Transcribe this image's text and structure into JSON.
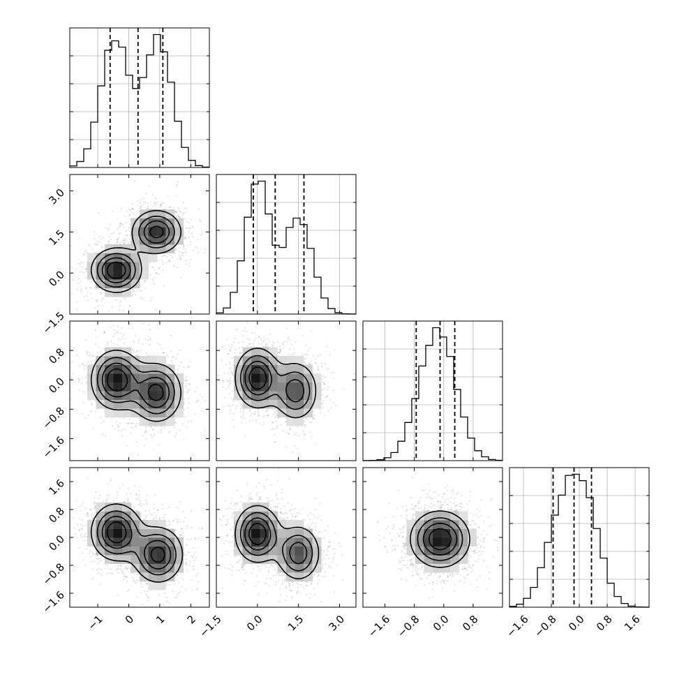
{
  "chart_data": {
    "type": "corner",
    "title": "",
    "parameters": [
      {
        "range": [
          -1.9,
          2.6
        ],
        "ticks": [
          -1,
          0,
          1,
          2
        ],
        "tick_labels": [
          "−1",
          "0",
          "1",
          "2"
        ],
        "quantiles": [
          -0.6,
          0.3,
          1.1
        ],
        "modes": [
          {
            "mean": -0.45,
            "sd": 0.45,
            "w": 0.5
          },
          {
            "mean": 0.95,
            "sd": 0.45,
            "w": 0.5
          }
        ]
      },
      {
        "range": [
          -1.5,
          3.6
        ],
        "ticks": [
          -1.5,
          0.0,
          1.5,
          3.0
        ],
        "tick_labels": [
          "−1.5",
          "0.0",
          "1.5",
          "3.0"
        ],
        "quantiles": [
          -0.15,
          0.65,
          1.7
        ],
        "modes": [
          {
            "mean": 0.0,
            "sd": 0.45,
            "w": 0.55
          },
          {
            "mean": 1.5,
            "sd": 0.5,
            "w": 0.45
          }
        ]
      },
      {
        "range": [
          -2.2,
          1.6
        ],
        "ticks": [
          -1.6,
          -0.8,
          0.0,
          0.8
        ],
        "tick_labels": [
          "−1.6",
          "−0.8",
          "0.0",
          "0.8"
        ],
        "quantiles": [
          -0.75,
          -0.1,
          0.3
        ],
        "modes": [
          {
            "mean": 0.0,
            "sd": 0.45,
            "w": 0.55
          },
          {
            "mean": -0.4,
            "sd": 0.45,
            "w": 0.45
          }
        ]
      },
      {
        "range": [
          -2.0,
          2.0
        ],
        "ticks": [
          -1.6,
          -0.8,
          0.0,
          0.8,
          1.6
        ],
        "tick_labels": [
          "−1.6",
          "−0.8",
          "0.0",
          "0.8",
          "1.6"
        ],
        "quantiles": [
          -0.75,
          -0.15,
          0.35
        ],
        "modes": [
          {
            "mean": 0.15,
            "sd": 0.45,
            "w": 0.55
          },
          {
            "mean": -0.55,
            "sd": 0.45,
            "w": 0.45
          }
        ]
      }
    ],
    "panels_2d": [
      {
        "row": 1,
        "col": 0,
        "blobs": [
          {
            "x": -0.4,
            "y": 0.1,
            "w": 1
          },
          {
            "x": 0.9,
            "y": 1.5,
            "w": 0.9
          }
        ]
      },
      {
        "row": 2,
        "col": 0,
        "blobs": [
          {
            "x": -0.4,
            "y": 0.0,
            "w": 1
          },
          {
            "x": 0.9,
            "y": -0.35,
            "w": 0.9
          }
        ]
      },
      {
        "row": 2,
        "col": 1,
        "blobs": [
          {
            "x": 0.0,
            "y": 0.05,
            "w": 1
          },
          {
            "x": 1.4,
            "y": -0.3,
            "w": 0.75
          }
        ]
      },
      {
        "row": 3,
        "col": 0,
        "blobs": [
          {
            "x": -0.4,
            "y": 0.15,
            "w": 1
          },
          {
            "x": 0.95,
            "y": -0.5,
            "w": 0.9
          }
        ]
      },
      {
        "row": 3,
        "col": 1,
        "blobs": [
          {
            "x": 0.0,
            "y": 0.1,
            "w": 1
          },
          {
            "x": 1.5,
            "y": -0.45,
            "w": 0.75
          }
        ]
      },
      {
        "row": 3,
        "col": 2,
        "blobs": [
          {
            "x": -0.1,
            "y": -0.05,
            "w": 1
          }
        ]
      }
    ],
    "y_axis_rows": [
      1,
      2,
      3
    ],
    "grid": true,
    "legend": "none"
  }
}
